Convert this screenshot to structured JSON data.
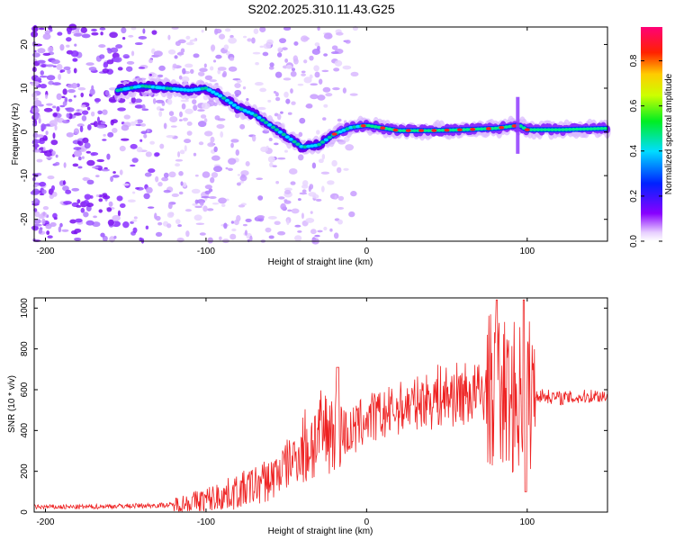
{
  "title": "S202.2025.310.11.43.G25",
  "colors": {
    "snr_line": "#ee2222",
    "frame": "#000000",
    "background": "#ffffff"
  },
  "chart_data": [
    {
      "type": "heatmap",
      "name": "spectrogram",
      "xlabel": "Height of straight line (km)",
      "ylabel": "Frequency (Hz)",
      "xlim": [
        -207,
        150
      ],
      "ylim": [
        -25,
        24
      ],
      "xticks": [
        -200,
        -100,
        0,
        100
      ],
      "yticks": [
        -20,
        -10,
        0,
        10,
        20
      ],
      "colorbar": {
        "label": "Normalized spectral amplitude",
        "range": [
          0,
          0.95
        ],
        "ticks": [
          0.0,
          0.2,
          0.4,
          0.6,
          0.8
        ],
        "colormap": "rainbow (violet → blue → cyan → green → yellow → orange → red → magenta)"
      },
      "ridge": {
        "x": [
          -155,
          -140,
          -125,
          -110,
          -100,
          -90,
          -80,
          -70,
          -60,
          -50,
          -40,
          -30,
          -20,
          -10,
          0,
          20,
          40,
          60,
          80,
          95,
          100,
          120,
          150
        ],
        "y": [
          9.5,
          10.5,
          10,
          9.5,
          10,
          8,
          5.5,
          4,
          1.5,
          -1,
          -3.5,
          -3,
          -0.5,
          1,
          1.5,
          0.3,
          0.3,
          0.5,
          0.8,
          1.5,
          0.5,
          0.5,
          0.8
        ]
      }
    },
    {
      "type": "line",
      "name": "snr",
      "xlabel": "Height of straight line (km)",
      "ylabel": "SNR (10 * v/v)",
      "xlim": [
        -207,
        150
      ],
      "ylim": [
        0,
        1050
      ],
      "xticks": [
        -200,
        -100,
        0,
        100
      ],
      "yticks": [
        0,
        200,
        400,
        600,
        800,
        1000
      ],
      "series": [
        {
          "name": "SNR",
          "x": [
            -207,
            -180,
            -150,
            -120,
            -100,
            -80,
            -60,
            -40,
            -25,
            -20,
            -10,
            0,
            10,
            20,
            30,
            40,
            50,
            60,
            70,
            80,
            90,
            100,
            110,
            120,
            130,
            140,
            150
          ],
          "values": [
            25,
            25,
            30,
            35,
            60,
            100,
            160,
            300,
            400,
            420,
            380,
            460,
            470,
            510,
            530,
            560,
            570,
            580,
            580,
            600,
            560,
            580,
            570,
            560,
            560,
            570,
            570
          ]
        }
      ]
    }
  ]
}
